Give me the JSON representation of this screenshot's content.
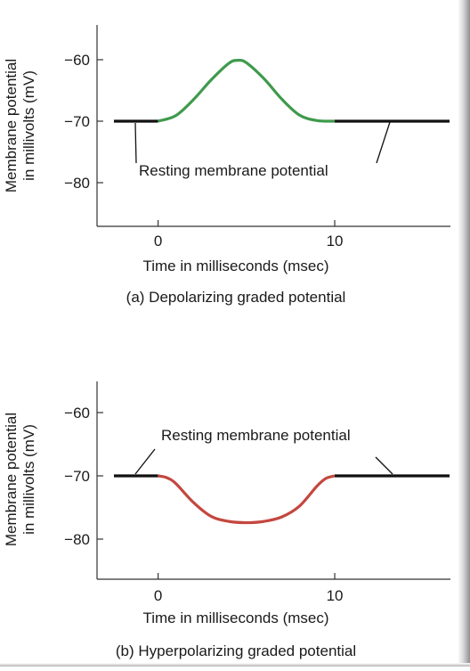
{
  "chart_data": [
    {
      "type": "line",
      "ylabel_lines": [
        "Membrane potential",
        "in millivolts (mV)"
      ],
      "xlabel": "Time in milliseconds (msec)",
      "caption": "(a) Depolarizing graded potential",
      "annotation": "Resting membrane potential",
      "xlim": [
        -2.5,
        16.5
      ],
      "ylim": [
        -86,
        -55
      ],
      "xticks": [
        0,
        10
      ],
      "yticks": [
        -60,
        -70,
        -80
      ],
      "ytick_labels": [
        "−60",
        "−70",
        "−80"
      ],
      "grid": false,
      "series": [
        {
          "role": "resting-left",
          "color": "#111111",
          "x": [
            -2.5,
            0
          ],
          "y": [
            -70,
            -70
          ]
        },
        {
          "role": "graded",
          "color": "#3f9a4c",
          "x": [
            0,
            1,
            2,
            3,
            4,
            4.5,
            5,
            6,
            7,
            8,
            9,
            10
          ],
          "y": [
            -70,
            -69.1,
            -66.5,
            -63.3,
            -60.6,
            -60.1,
            -60.5,
            -63.1,
            -66.4,
            -69,
            -69.9,
            -70
          ]
        },
        {
          "role": "resting-right",
          "color": "#111111",
          "x": [
            10,
            16.5
          ],
          "y": [
            -70,
            -70
          ]
        }
      ]
    },
    {
      "type": "line",
      "ylabel_lines": [
        "Membrane potential",
        "in millivolts (mV)"
      ],
      "xlabel": "Time in milliseconds (msec)",
      "caption": "(b) Hyperpolarizing graded potential",
      "annotation": "Resting membrane potential",
      "xlim": [
        -2.5,
        16.5
      ],
      "ylim": [
        -86,
        -55
      ],
      "xticks": [
        0,
        10
      ],
      "yticks": [
        -60,
        -70,
        -80
      ],
      "ytick_labels": [
        "−60",
        "−70",
        "−80"
      ],
      "grid": false,
      "series": [
        {
          "role": "resting-left",
          "color": "#111111",
          "x": [
            -2.5,
            0
          ],
          "y": [
            -70,
            -70
          ]
        },
        {
          "role": "graded",
          "color": "#c4473f",
          "x": [
            0,
            0.5,
            1,
            2,
            3,
            4,
            5,
            6,
            7,
            8,
            9,
            9.5,
            10
          ],
          "y": [
            -70,
            -70.3,
            -71.2,
            -74.2,
            -76.4,
            -77.2,
            -77.4,
            -77.2,
            -76.5,
            -74.8,
            -71.6,
            -70.4,
            -70
          ]
        },
        {
          "role": "resting-right",
          "color": "#111111",
          "x": [
            10,
            16.5
          ],
          "y": [
            -70,
            -70
          ]
        }
      ]
    }
  ]
}
